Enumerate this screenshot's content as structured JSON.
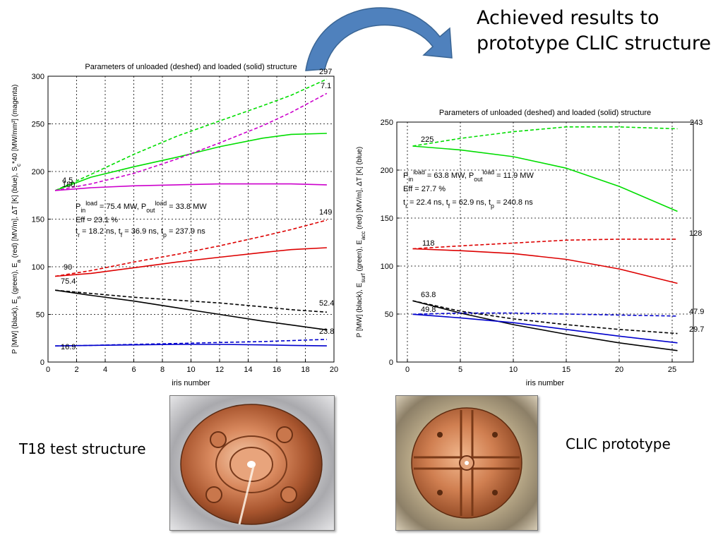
{
  "slide": {
    "title": "Achieved results to prototype CLIC structure",
    "caption_left": "T18 test structure",
    "caption_right": "CLIC prototype"
  },
  "colors": {
    "accent_arrow": "#4f81bd",
    "black_series": "#000000",
    "green_series": "#00dd00",
    "red_series": "#dd0000",
    "blue_series": "#0000cc",
    "magenta_series": "#cc00cc"
  },
  "images": {
    "left_photo": "copper-disk-t18-photo",
    "right_photo": "copper-disk-clic-photo"
  },
  "chart_data": [
    {
      "type": "line",
      "title": "Parameters of unloaded (deshed) and loaded (solid) structure",
      "xlabel": "iris number",
      "ylabel": "P [MW] (black), E_s (green), E_a (red) [MV/m], ΔT [K] (blue), S_c*40 [MW/mm²] (magenta)",
      "xlim": [
        0,
        20
      ],
      "ylim": [
        0,
        300
      ],
      "xticks": [
        0,
        2,
        4,
        6,
        8,
        10,
        12,
        14,
        16,
        18,
        20
      ],
      "yticks": [
        0,
        50,
        100,
        150,
        200,
        250,
        300
      ],
      "grid": true,
      "annotations_text": {
        "line1": "P_in^load = 75.4 MW, P_out^load = 33.8 MW",
        "line2": "Eff = 23.1 %",
        "line3": "t_r = 18.2 ns, t_f = 36.9 ns, t_p = 237.9 ns"
      },
      "labels": [
        "297",
        "7.1",
        "149",
        "52.4",
        "23.8",
        "75.4",
        "90",
        "16.9",
        "4.5",
        "180"
      ],
      "series": [
        {
          "name": "E_s unloaded",
          "color": "green",
          "style": "dashed",
          "x": [
            0.5,
            3,
            6,
            9,
            12,
            15,
            17,
            19.5
          ],
          "y": [
            180,
            197,
            218,
            237,
            253,
            269,
            280,
            297
          ]
        },
        {
          "name": "E_s loaded",
          "color": "green",
          "style": "solid",
          "x": [
            0.5,
            3,
            6,
            9,
            12,
            15,
            17,
            19.5
          ],
          "y": [
            180,
            194,
            205,
            215,
            226,
            235,
            239,
            240
          ]
        },
        {
          "name": "S_c unloaded",
          "color": "magenta",
          "style": "dashed",
          "x": [
            0.5,
            3,
            6,
            9,
            12,
            15,
            17,
            19.5
          ],
          "y": [
            180,
            187,
            198,
            213,
            230,
            248,
            262,
            282
          ]
        },
        {
          "name": "S_c loaded",
          "color": "magenta",
          "style": "solid",
          "x": [
            0.5,
            3,
            6,
            9,
            12,
            15,
            17,
            19.5
          ],
          "y": [
            180,
            183,
            185,
            186,
            187,
            187,
            187,
            186
          ]
        },
        {
          "name": "E_a unloaded",
          "color": "red",
          "style": "dashed",
          "x": [
            0.5,
            3,
            6,
            9,
            12,
            15,
            17,
            19.5
          ],
          "y": [
            90,
            96,
            105,
            113,
            122,
            132,
            139,
            149
          ]
        },
        {
          "name": "E_a loaded",
          "color": "red",
          "style": "solid",
          "x": [
            0.5,
            3,
            6,
            9,
            12,
            15,
            17,
            19.5
          ],
          "y": [
            90,
            93,
            99,
            105,
            110,
            115,
            118,
            120
          ]
        },
        {
          "name": "P unloaded",
          "color": "black",
          "style": "dashed",
          "x": [
            0.5,
            3,
            6,
            9,
            12,
            15,
            17,
            19.5
          ],
          "y": [
            75.4,
            72,
            68,
            65,
            62,
            58,
            55,
            52.4
          ]
        },
        {
          "name": "P loaded",
          "color": "black",
          "style": "solid",
          "x": [
            0.5,
            3,
            6,
            9,
            12,
            15,
            17,
            19.5
          ],
          "y": [
            75.4,
            70,
            64,
            57,
            50,
            43,
            39,
            33.8
          ]
        },
        {
          "name": "ΔT unloaded",
          "color": "blue",
          "style": "dashed",
          "x": [
            0.5,
            3,
            6,
            9,
            12,
            15,
            17,
            19.5
          ],
          "y": [
            16.9,
            17.5,
            18.5,
            19.5,
            20.5,
            21.5,
            22.5,
            23.8
          ]
        },
        {
          "name": "ΔT loaded",
          "color": "blue",
          "style": "solid",
          "x": [
            0.5,
            3,
            6,
            9,
            12,
            15,
            17,
            19.5
          ],
          "y": [
            16.9,
            17.5,
            18,
            18.5,
            18.5,
            18,
            17.5,
            17
          ]
        }
      ]
    },
    {
      "type": "line",
      "title": "Parameters of unloaded (deshed) and loaded (solid) structure",
      "xlabel": "iris number",
      "ylabel": "P [MW] (black), E_surf (green), E_acc (red) [MV/m], ΔT [K] (blue)",
      "xlim": [
        -1,
        27
      ],
      "ylim": [
        0,
        250
      ],
      "xticks": [
        0,
        5,
        10,
        15,
        20,
        25
      ],
      "yticks": [
        0,
        50,
        100,
        150,
        200,
        250
      ],
      "grid": true,
      "annotations_text": {
        "line1": "P_in^load = 63.8 MW, P_out^load = 11.9 MW",
        "line2": "Eff = 27.7 %",
        "line3": "t_r = 22.4 ns, t_f = 62.9 ns, t_p = 240.8 ns"
      },
      "labels": [
        "225",
        "243",
        "118",
        "128",
        "63.8",
        "49.8",
        "47.9",
        "29.7"
      ],
      "series": [
        {
          "name": "E_surf unloaded",
          "color": "green",
          "style": "dashed",
          "x": [
            0.5,
            5,
            10,
            15,
            20,
            25.5
          ],
          "y": [
            225,
            233,
            240,
            245,
            245,
            243
          ]
        },
        {
          "name": "E_surf loaded",
          "color": "green",
          "style": "solid",
          "x": [
            0.5,
            5,
            10,
            15,
            20,
            25.5
          ],
          "y": [
            225,
            221,
            214,
            202,
            183,
            157
          ]
        },
        {
          "name": "E_acc unloaded",
          "color": "red",
          "style": "dashed",
          "x": [
            0.5,
            5,
            10,
            15,
            20,
            25.5
          ],
          "y": [
            118,
            121,
            124,
            127,
            128,
            128
          ]
        },
        {
          "name": "E_acc loaded",
          "color": "red",
          "style": "solid",
          "x": [
            0.5,
            5,
            10,
            15,
            20,
            25.5
          ],
          "y": [
            118,
            116,
            113,
            107,
            97,
            82
          ]
        },
        {
          "name": "P unloaded",
          "color": "black",
          "style": "dashed",
          "x": [
            0.5,
            5,
            10,
            15,
            20,
            25.5
          ],
          "y": [
            63.8,
            53,
            45,
            39,
            34,
            29.7
          ]
        },
        {
          "name": "P loaded",
          "color": "black",
          "style": "solid",
          "x": [
            0.5,
            5,
            10,
            15,
            20,
            25.5
          ],
          "y": [
            63.8,
            51,
            39,
            29,
            20,
            11.9
          ]
        },
        {
          "name": "ΔT unloaded",
          "color": "blue",
          "style": "dashed",
          "x": [
            0.5,
            5,
            10,
            15,
            20,
            25.5
          ],
          "y": [
            49.8,
            51,
            51,
            50,
            49,
            47.9
          ]
        },
        {
          "name": "ΔT loaded",
          "color": "blue",
          "style": "solid",
          "x": [
            0.5,
            5,
            10,
            15,
            20,
            25.5
          ],
          "y": [
            49.8,
            46,
            41,
            34,
            27,
            20
          ]
        }
      ]
    }
  ]
}
